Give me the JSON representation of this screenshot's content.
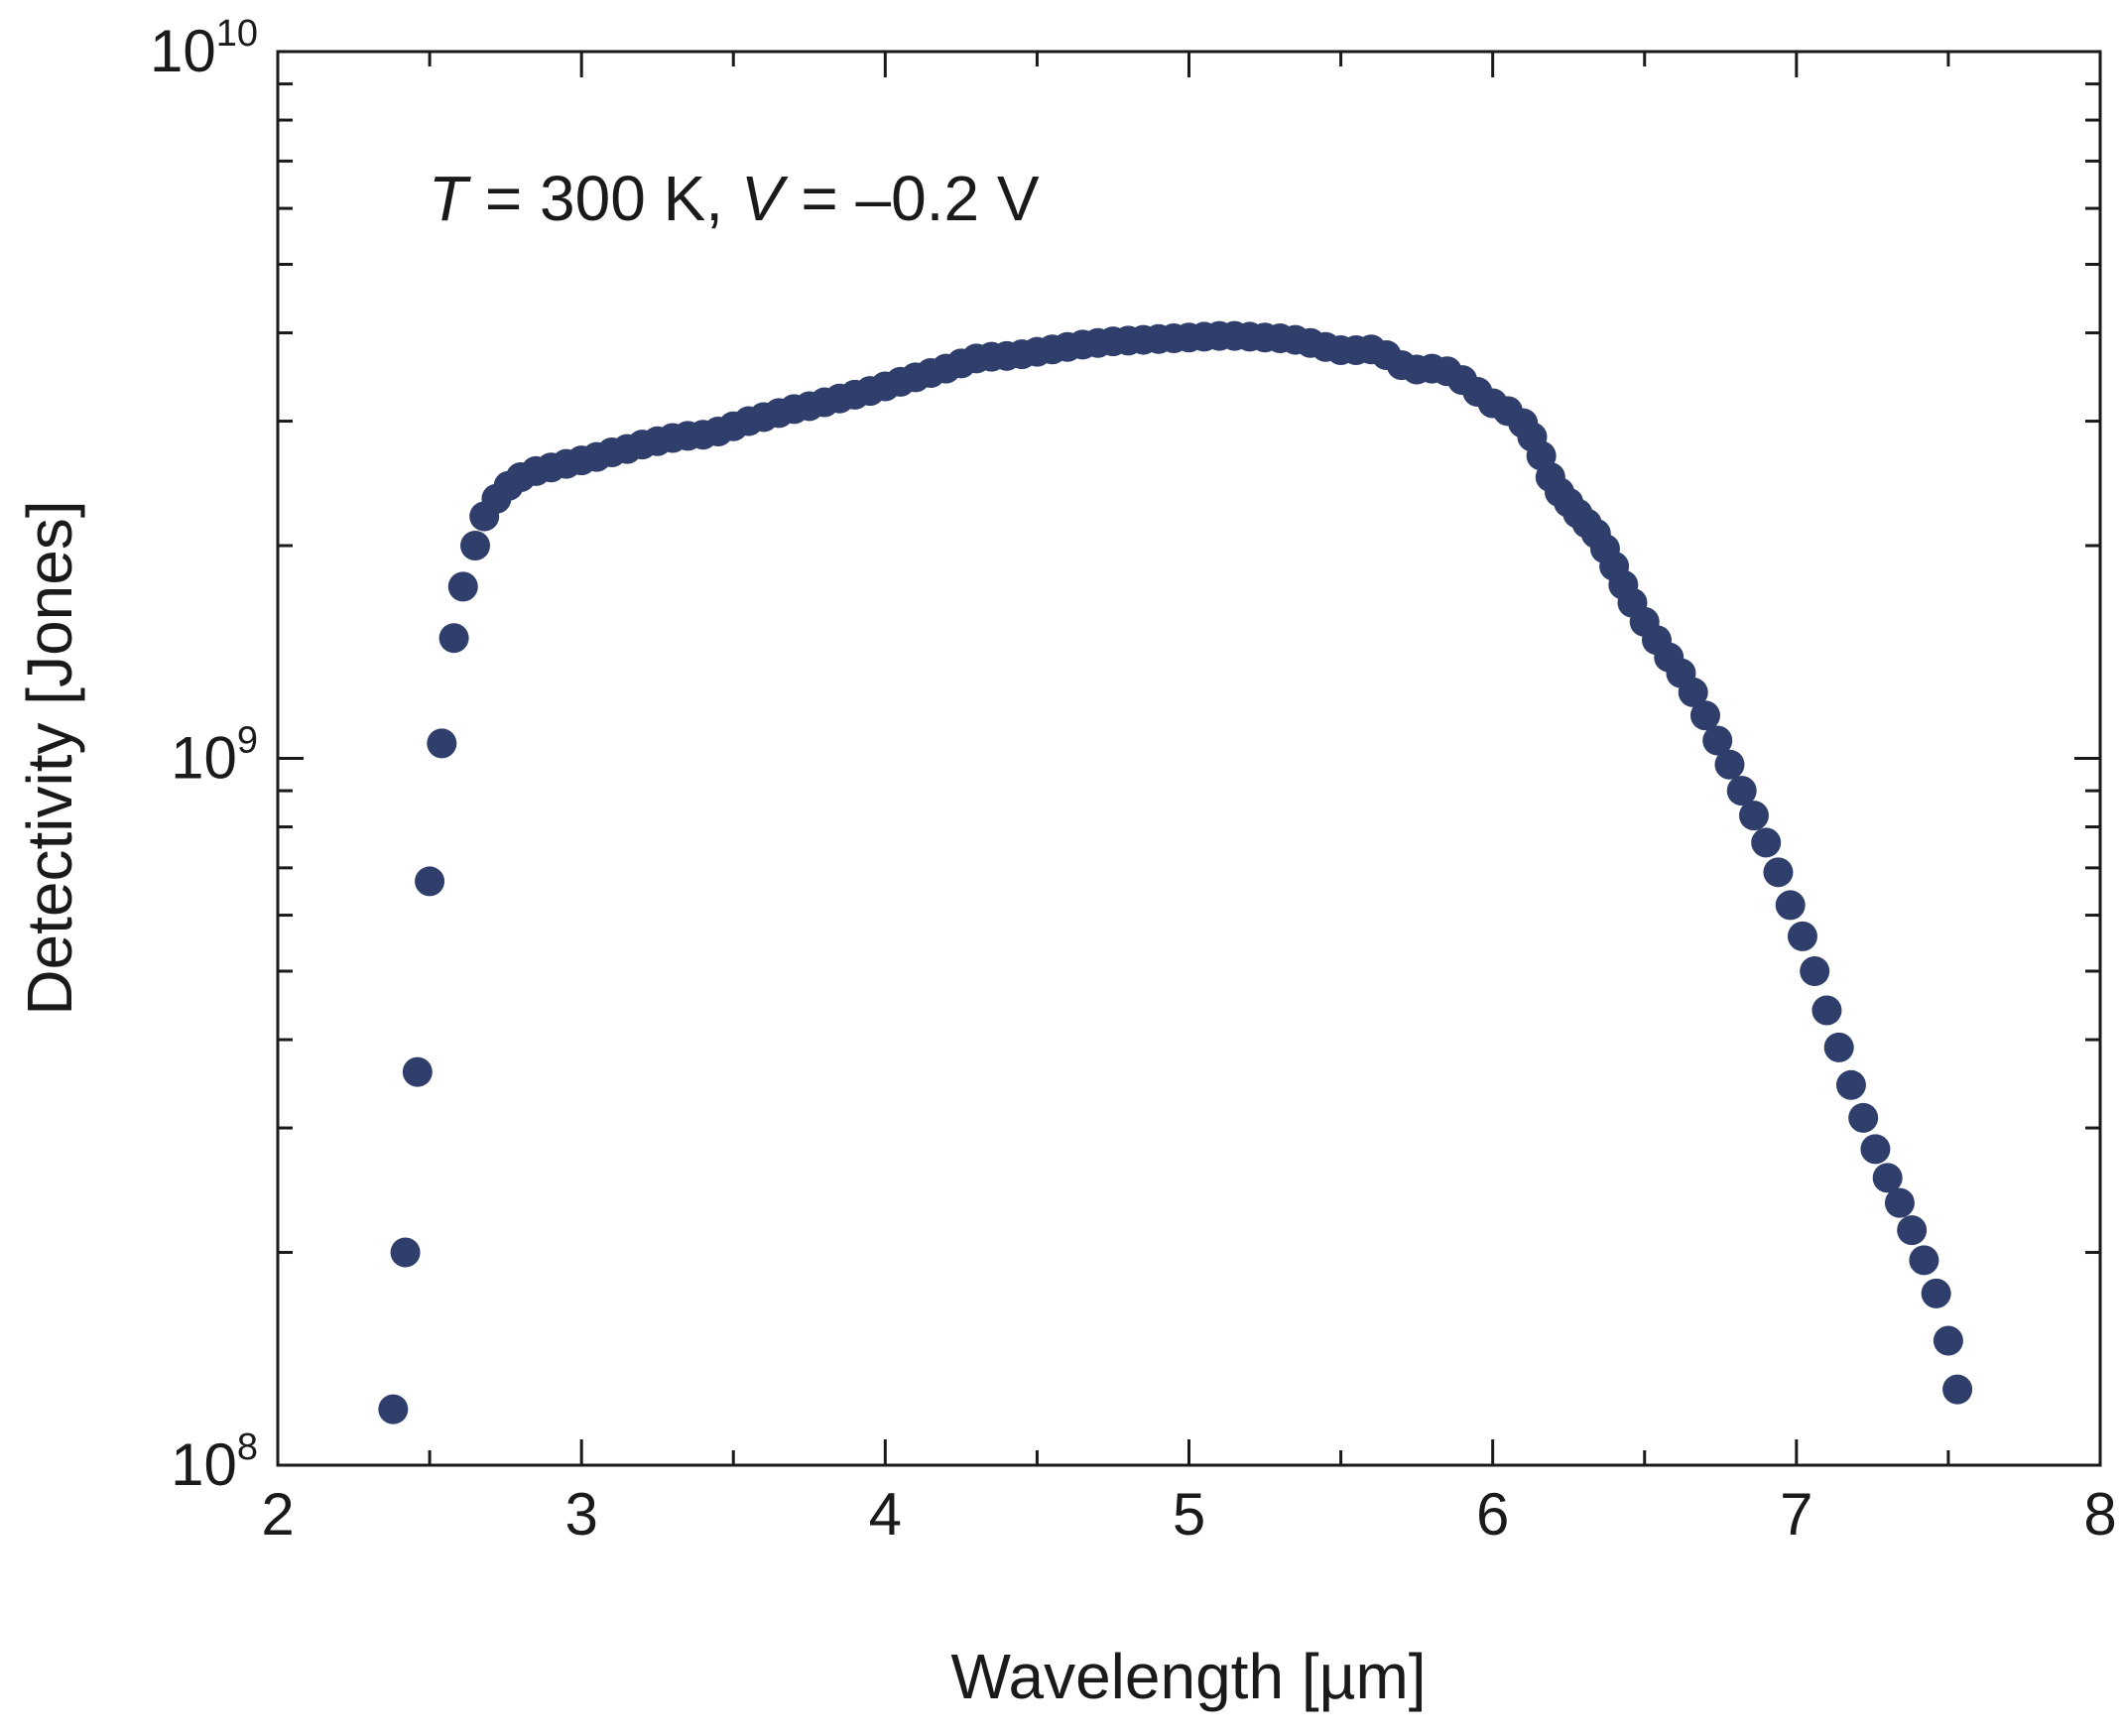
{
  "chart_data": {
    "type": "scatter",
    "title": "",
    "xlabel": "Wavelength [µm]",
    "ylabel": "Detectivity [Jones]",
    "xscale": "linear",
    "yscale": "log",
    "xlim": [
      2,
      8
    ],
    "ylim": [
      100000000.0,
      10000000000.0
    ],
    "x_ticks": [
      "2",
      "3",
      "4",
      "5",
      "6",
      "7",
      "8"
    ],
    "y_ticks": [
      {
        "base": "10",
        "exp": "8"
      },
      {
        "base": "10",
        "exp": "9"
      },
      {
        "base": "10",
        "exp": "10"
      }
    ],
    "annotation": {
      "var1": "T",
      "rest1": " = 300 K, ",
      "var2": "V",
      "rest2": " = –0.2 V"
    },
    "grid": false,
    "marker_color": "#2f3e6b",
    "series": [
      {
        "name": "Detectivity",
        "points": [
          [
            2.38,
            120000000.0
          ],
          [
            2.42,
            200000000.0
          ],
          [
            2.46,
            360000000.0
          ],
          [
            2.5,
            670000000.0
          ],
          [
            2.54,
            1050000000.0
          ],
          [
            2.58,
            1480000000.0
          ],
          [
            2.61,
            1750000000.0
          ],
          [
            2.65,
            2000000000.0
          ],
          [
            2.68,
            2200000000.0
          ],
          [
            2.72,
            2330000000.0
          ],
          [
            2.76,
            2430000000.0
          ],
          [
            2.8,
            2500000000.0
          ],
          [
            2.85,
            2550000000.0
          ],
          [
            2.9,
            2580000000.0
          ],
          [
            2.95,
            2610000000.0
          ],
          [
            3.0,
            2640000000.0
          ],
          [
            3.05,
            2670000000.0
          ],
          [
            3.1,
            2710000000.0
          ],
          [
            3.15,
            2740000000.0
          ],
          [
            3.2,
            2780000000.0
          ],
          [
            3.25,
            2810000000.0
          ],
          [
            3.3,
            2840000000.0
          ],
          [
            3.35,
            2860000000.0
          ],
          [
            3.4,
            2870000000.0
          ],
          [
            3.45,
            2900000000.0
          ],
          [
            3.5,
            2950000000.0
          ],
          [
            3.55,
            3000000000.0
          ],
          [
            3.6,
            3040000000.0
          ],
          [
            3.65,
            3080000000.0
          ],
          [
            3.7,
            3120000000.0
          ],
          [
            3.75,
            3150000000.0
          ],
          [
            3.8,
            3190000000.0
          ],
          [
            3.85,
            3230000000.0
          ],
          [
            3.9,
            3270000000.0
          ],
          [
            3.95,
            3310000000.0
          ],
          [
            4.0,
            3360000000.0
          ],
          [
            4.05,
            3410000000.0
          ],
          [
            4.1,
            3460000000.0
          ],
          [
            4.15,
            3510000000.0
          ],
          [
            4.2,
            3560000000.0
          ],
          [
            4.25,
            3620000000.0
          ],
          [
            4.3,
            3680000000.0
          ],
          [
            4.35,
            3700000000.0
          ],
          [
            4.4,
            3710000000.0
          ],
          [
            4.45,
            3730000000.0
          ],
          [
            4.5,
            3760000000.0
          ],
          [
            4.55,
            3790000000.0
          ],
          [
            4.6,
            3820000000.0
          ],
          [
            4.65,
            3850000000.0
          ],
          [
            4.7,
            3870000000.0
          ],
          [
            4.75,
            3890000000.0
          ],
          [
            4.8,
            3900000000.0
          ],
          [
            4.85,
            3910000000.0
          ],
          [
            4.9,
            3920000000.0
          ],
          [
            4.95,
            3930000000.0
          ],
          [
            5.0,
            3940000000.0
          ],
          [
            5.05,
            3950000000.0
          ],
          [
            5.1,
            3960000000.0
          ],
          [
            5.15,
            3960000000.0
          ],
          [
            5.2,
            3950000000.0
          ],
          [
            5.25,
            3940000000.0
          ],
          [
            5.3,
            3930000000.0
          ],
          [
            5.35,
            3910000000.0
          ],
          [
            5.4,
            3870000000.0
          ],
          [
            5.45,
            3820000000.0
          ],
          [
            5.5,
            3780000000.0
          ],
          [
            5.55,
            3780000000.0
          ],
          [
            5.6,
            3790000000.0
          ],
          [
            5.65,
            3720000000.0
          ],
          [
            5.7,
            3600000000.0
          ],
          [
            5.75,
            3550000000.0
          ],
          [
            5.8,
            3560000000.0
          ],
          [
            5.85,
            3530000000.0
          ],
          [
            5.9,
            3430000000.0
          ],
          [
            5.95,
            3300000000.0
          ],
          [
            6.0,
            3180000000.0
          ],
          [
            6.05,
            3100000000.0
          ],
          [
            6.1,
            2980000000.0
          ],
          [
            6.13,
            2850000000.0
          ],
          [
            6.16,
            2680000000.0
          ],
          [
            6.19,
            2500000000.0
          ],
          [
            6.22,
            2380000000.0
          ],
          [
            6.25,
            2300000000.0
          ],
          [
            6.28,
            2220000000.0
          ],
          [
            6.31,
            2150000000.0
          ],
          [
            6.34,
            2080000000.0
          ],
          [
            6.37,
            1980000000.0
          ],
          [
            6.4,
            1870000000.0
          ],
          [
            6.43,
            1760000000.0
          ],
          [
            6.46,
            1660000000.0
          ],
          [
            6.5,
            1560000000.0
          ],
          [
            6.54,
            1470000000.0
          ],
          [
            6.58,
            1390000000.0
          ],
          [
            6.62,
            1320000000.0
          ],
          [
            6.66,
            1240000000.0
          ],
          [
            6.7,
            1150000000.0
          ],
          [
            6.74,
            1060000000.0
          ],
          [
            6.78,
            980000000.0
          ],
          [
            6.82,
            900000000.0
          ],
          [
            6.86,
            830000000.0
          ],
          [
            6.9,
            760000000.0
          ],
          [
            6.94,
            690000000.0
          ],
          [
            6.98,
            620000000.0
          ],
          [
            7.02,
            560000000.0
          ],
          [
            7.06,
            500000000.0
          ],
          [
            7.1,
            440000000.0
          ],
          [
            7.14,
            390000000.0
          ],
          [
            7.18,
            345000000.0
          ],
          [
            7.22,
            310000000.0
          ],
          [
            7.26,
            280000000.0
          ],
          [
            7.3,
            255000000.0
          ],
          [
            7.34,
            235000000.0
          ],
          [
            7.38,
            215000000.0
          ],
          [
            7.42,
            195000000.0
          ],
          [
            7.46,
            175000000.0
          ],
          [
            7.5,
            150000000.0
          ],
          [
            7.53,
            128000000.0
          ]
        ]
      }
    ]
  }
}
